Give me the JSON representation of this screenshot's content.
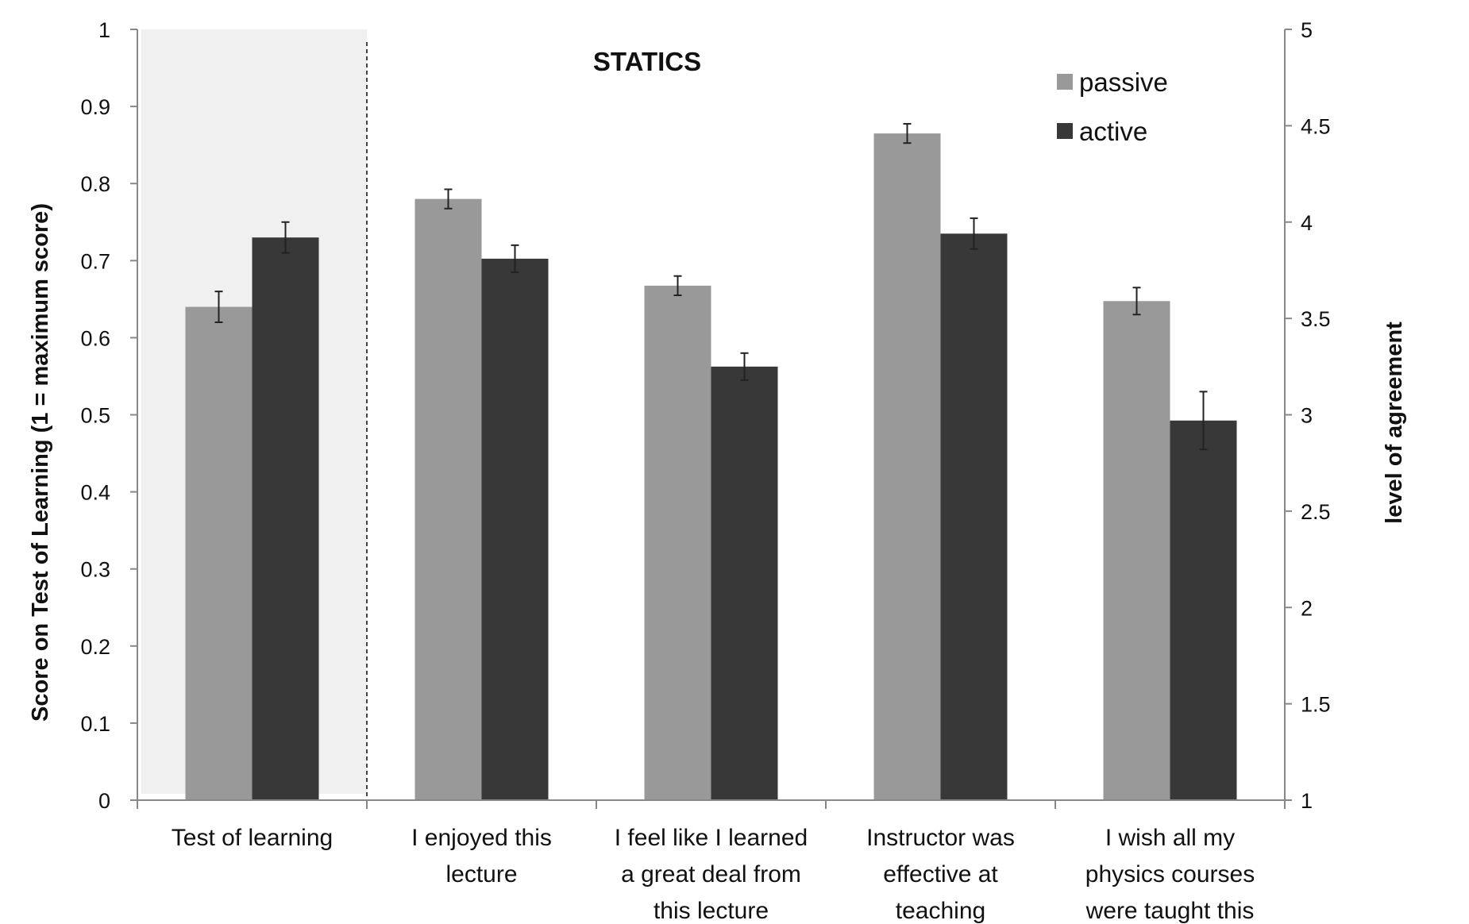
{
  "chart_data": {
    "type": "bar",
    "title": "STATICS",
    "categories": [
      [
        "Test of learning"
      ],
      [
        "I enjoyed this",
        "lecture"
      ],
      [
        "I feel like I learned",
        "a great deal from",
        "this lecture"
      ],
      [
        "Instructor was",
        "effective at",
        "teaching"
      ],
      [
        "I wish all my",
        "physics courses",
        "were taught this"
      ]
    ],
    "series": [
      {
        "name": "passive",
        "color": "#999999",
        "values": [
          0.64,
          4.12,
          3.67,
          4.46,
          3.59
        ],
        "errors": [
          0.02,
          0.05,
          0.05,
          0.05,
          0.07
        ]
      },
      {
        "name": "active",
        "color": "#383838",
        "values": [
          0.73,
          3.81,
          3.25,
          3.94,
          2.97
        ],
        "errors": [
          0.02,
          0.07,
          0.07,
          0.08,
          0.15
        ]
      }
    ],
    "first_category_axis": "left",
    "other_categories_axis": "right",
    "left_axis": {
      "label": "Score on Test of Learning  (1 = maximum score)",
      "ylim": [
        0,
        1
      ],
      "ticks": [
        "0",
        "0.1",
        "0.2",
        "0.3",
        "0.4",
        "0.5",
        "0.6",
        "0.7",
        "0.8",
        "0.9",
        "1"
      ]
    },
    "right_axis": {
      "label": "level of agreement",
      "ylim": [
        1,
        5
      ],
      "ticks": [
        "1",
        "1.5",
        "2",
        "2.5",
        "3",
        "3.5",
        "4",
        "4.5",
        "5"
      ]
    },
    "highlight_first_category": true,
    "highlight_color": "#f0f0f0",
    "legend_position": "top-right",
    "grid": false
  }
}
